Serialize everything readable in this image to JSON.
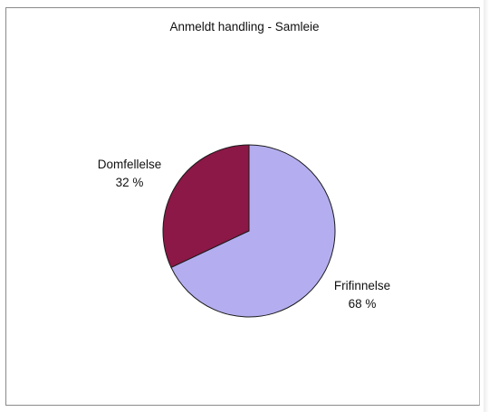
{
  "chart_data": {
    "type": "pie",
    "title": "Anmeldt handling - Samleie",
    "slices": [
      {
        "label": "Domfellelse",
        "value": 32,
        "value_label": "32 %",
        "color": "#8b1846"
      },
      {
        "label": "Frifinnelse",
        "value": 68,
        "value_label": "68 %",
        "color": "#b4aef0"
      }
    ],
    "start_angle_deg": 0,
    "direction": "counterclockwise-from-top",
    "stroke_color": "#1a1a1a",
    "legend": "none"
  }
}
